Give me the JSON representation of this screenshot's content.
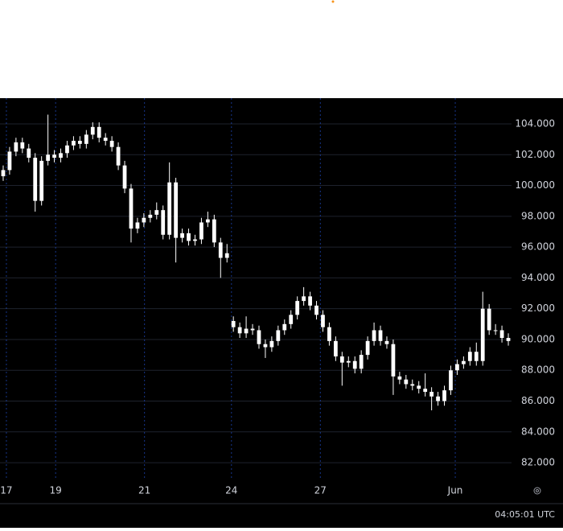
{
  "chart_data": {
    "type": "candlestick",
    "x": [
      0,
      1,
      2,
      3,
      4,
      5,
      6,
      7,
      8,
      9,
      10,
      11,
      12,
      13,
      14,
      15,
      16,
      17,
      18,
      19,
      20,
      21,
      22,
      23,
      24,
      25,
      26,
      27,
      28,
      29,
      30,
      31,
      32,
      33,
      34,
      35,
      36,
      37,
      38,
      39,
      40,
      41,
      42,
      43,
      44,
      45,
      46,
      47,
      48,
      49,
      50,
      51,
      52,
      53,
      54,
      55,
      56,
      57,
      58,
      59,
      60,
      61,
      62,
      63,
      64,
      65,
      66,
      67,
      68,
      69,
      70,
      71,
      72,
      73,
      74,
      75,
      76,
      77,
      78,
      79
    ],
    "open": [
      100.6,
      101,
      102.2,
      102.8,
      102.4,
      101.8,
      99,
      101.6,
      102,
      101.8,
      102.1,
      102.6,
      102.9,
      102.7,
      103.3,
      103.8,
      103.1,
      102.9,
      102.5,
      101.3,
      99.8,
      97.2,
      97.6,
      97.9,
      98.1,
      98.4,
      96.8,
      100.2,
      96.6,
      96.9,
      96.4,
      96.5,
      97.6,
      97.8,
      96.3,
      95.3,
      91.2,
      90.8,
      90.4,
      90.7,
      90.6,
      89.7,
      89.5,
      89.9,
      90.6,
      91.0,
      91.6,
      92.5,
      92.8,
      92.2,
      91.6,
      90.8,
      89.9,
      88.9,
      88.5,
      88.6,
      88.1,
      89.0,
      89.9,
      90.6,
      89.9,
      89.7,
      87.6,
      87.4,
      87.1,
      87.0,
      86.8,
      86.6,
      86.3,
      86.0,
      86.7,
      88.0,
      88.4,
      88.6,
      89.2,
      88.6,
      92.0,
      90.6,
      90.6,
      90.1
    ],
    "high": [
      101.3,
      102.5,
      103.1,
      103.1,
      102.7,
      102.1,
      101.9,
      104.6,
      102.3,
      102.4,
      102.9,
      103.2,
      103.2,
      103.6,
      104.1,
      104.1,
      103.4,
      103.2,
      102.8,
      101.6,
      100.1,
      97.9,
      98.2,
      98.4,
      98.9,
      98.7,
      101.5,
      100.5,
      97.2,
      97.2,
      96.8,
      97.9,
      98.3,
      98.1,
      96.6,
      96.2,
      91.5,
      91.1,
      91.5,
      91.0,
      90.9,
      90.0,
      90.2,
      90.9,
      91.3,
      91.9,
      92.8,
      93.4,
      93.1,
      92.5,
      91.9,
      91.1,
      90.2,
      89.2,
      88.9,
      88.9,
      89.3,
      90.2,
      91.1,
      90.9,
      90.2,
      90.0,
      87.9,
      87.7,
      87.4,
      87.3,
      87.8,
      86.9,
      86.6,
      87.0,
      88.3,
      88.7,
      88.9,
      89.5,
      89.8,
      93.1,
      92.3,
      91.0,
      90.9,
      90.4
    ],
    "low": [
      100.3,
      100.7,
      101.9,
      102.1,
      101.5,
      98.3,
      98.7,
      101.3,
      101.5,
      101.5,
      101.8,
      102.3,
      102.4,
      102.4,
      103.0,
      102.8,
      102.6,
      102.2,
      101.0,
      99.5,
      96.3,
      96.9,
      97.3,
      97.6,
      97.8,
      96.5,
      96.5,
      95.0,
      96.3,
      96.1,
      96.1,
      96.2,
      97.3,
      96.0,
      94.0,
      95.0,
      90.5,
      90.1,
      90.1,
      90.3,
      89.4,
      88.8,
      89.2,
      89.6,
      90.3,
      90.7,
      91.3,
      92.2,
      91.9,
      91.3,
      90.5,
      89.6,
      88.6,
      87.0,
      88.2,
      87.8,
      87.8,
      88.7,
      89.6,
      89.6,
      89.4,
      86.4,
      87.1,
      86.8,
      86.7,
      86.5,
      86.3,
      85.4,
      85.7,
      85.7,
      86.4,
      87.7,
      88.1,
      88.3,
      88.3,
      88.3,
      90.3,
      90.3,
      89.8,
      89.6
    ],
    "close": [
      101,
      102.2,
      102.8,
      102.4,
      101.8,
      99,
      101.6,
      102,
      101.8,
      102.1,
      102.6,
      102.9,
      102.7,
      103.3,
      103.8,
      103.1,
      102.9,
      102.5,
      101.3,
      99.8,
      97.2,
      97.6,
      97.9,
      98.1,
      98.4,
      96.8,
      100.2,
      96.6,
      96.9,
      96.4,
      96.5,
      97.6,
      97.8,
      96.3,
      95.3,
      95.6,
      90.8,
      90.4,
      90.7,
      90.6,
      89.7,
      89.5,
      89.9,
      90.6,
      91.0,
      91.6,
      92.5,
      92.8,
      92.2,
      91.6,
      90.8,
      89.9,
      88.9,
      88.5,
      88.6,
      88.1,
      89.0,
      89.9,
      90.6,
      89.9,
      89.7,
      87.6,
      87.4,
      87.1,
      87.0,
      86.8,
      86.6,
      86.3,
      86.0,
      86.7,
      88.0,
      88.4,
      88.6,
      89.2,
      88.6,
      92.0,
      90.6,
      90.6,
      90.1,
      89.9
    ],
    "color": "#ffffff",
    "xlim": [
      -0.5,
      79.5
    ],
    "xticks": [
      {
        "value": 0.5,
        "label": "17"
      },
      {
        "value": 8.2,
        "label": "19"
      },
      {
        "value": 22.1,
        "label": "21"
      },
      {
        "value": 35.7,
        "label": "24"
      },
      {
        "value": 49.6,
        "label": "27"
      },
      {
        "value": 70.7,
        "label": "Jun"
      }
    ],
    "ylim": [
      80.96,
      105.67
    ],
    "yticks": [
      {
        "value": 82,
        "label": "82.000"
      },
      {
        "value": 84,
        "label": "84.000"
      },
      {
        "value": 86,
        "label": "86.000"
      },
      {
        "value": 88,
        "label": "88.000"
      },
      {
        "value": 90,
        "label": "90.000"
      },
      {
        "value": 92,
        "label": "92.000"
      },
      {
        "value": 94,
        "label": "94.000"
      },
      {
        "value": 96,
        "label": "96.000"
      },
      {
        "value": 98,
        "label": "98.000"
      },
      {
        "value": 100,
        "label": "100.000"
      },
      {
        "value": 102,
        "label": "102.000"
      },
      {
        "value": 104,
        "label": "104.000"
      }
    ],
    "grid": true,
    "clock": "04:05:01 UTC"
  }
}
